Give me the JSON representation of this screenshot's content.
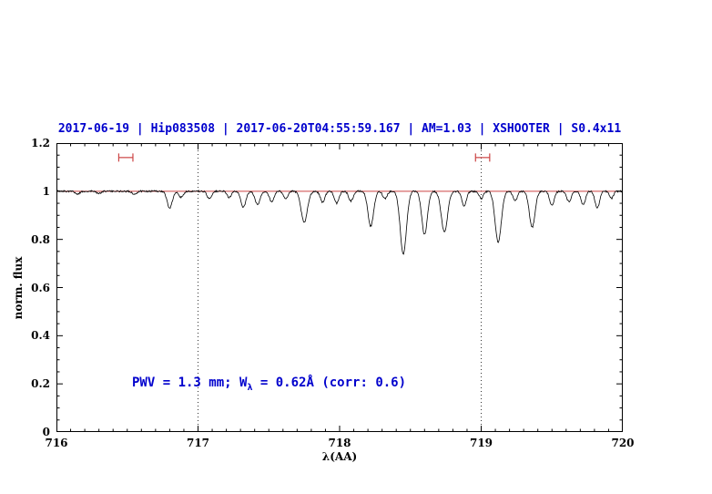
{
  "title": "2017-06-19 | Hip083508 | 2017-06-20T04:55:59.167 | AM=1.03 | XSHOOTER | S0.4x11",
  "annotation": {
    "part1": "PWV = 1.3 mm; W",
    "sub": "λ",
    "part2": " = 0.62Å (corr: 0.6)"
  },
  "colors": {
    "title_blue": "#0000cd",
    "annotation_blue": "#0000cd",
    "continuum_red": "#cc4444",
    "marker_red": "#cc4444",
    "spectrum_black": "#000000",
    "dotted_grid": "#333333",
    "frame": "#000000",
    "background": "#ffffff"
  },
  "chart_data": {
    "type": "line",
    "title": "2017-06-19 | Hip083508 | 2017-06-20T04:55:59.167 | AM=1.03 | XSHOOTER | S0.4x11",
    "xlabel": "λ(AA)",
    "ylabel": "norm. flux",
    "xlim": [
      716,
      720
    ],
    "ylim": [
      0,
      1.2
    ],
    "x_ticks": [
      716,
      717,
      718,
      719,
      720
    ],
    "x_tick_labels": [
      "716",
      "717",
      "718",
      "719",
      "720"
    ],
    "y_ticks": [
      0,
      0.2,
      0.4,
      0.6,
      0.8,
      1,
      1.2
    ],
    "y_tick_labels": [
      "0",
      "0.2",
      "0.4",
      "0.6",
      "0.8",
      "1",
      "1.2"
    ],
    "x_minor_step": 0.1,
    "y_minor_step": 0.05,
    "grid": "off",
    "legend": "none",
    "dotted_vlines_x": [
      717,
      719
    ],
    "continuum_y": 1.0,
    "range_markers": [
      {
        "x1": 716.44,
        "x2": 716.54,
        "y": 1.14
      },
      {
        "x1": 718.96,
        "x2": 719.06,
        "y": 1.14
      }
    ],
    "noise_amplitude": 0.0035,
    "sample_step": 0.004,
    "absorption_lines": [
      [
        716.15,
        0.012,
        0.015
      ],
      [
        716.3,
        0.01,
        0.015
      ],
      [
        716.55,
        0.012,
        0.015
      ],
      [
        716.8,
        0.07,
        0.018
      ],
      [
        716.88,
        0.025,
        0.015
      ],
      [
        717.08,
        0.03,
        0.016
      ],
      [
        717.22,
        0.025,
        0.015
      ],
      [
        717.32,
        0.065,
        0.018
      ],
      [
        717.42,
        0.055,
        0.018
      ],
      [
        717.52,
        0.045,
        0.016
      ],
      [
        717.62,
        0.03,
        0.015
      ],
      [
        717.75,
        0.13,
        0.022
      ],
      [
        717.88,
        0.045,
        0.016
      ],
      [
        717.98,
        0.05,
        0.016
      ],
      [
        718.08,
        0.04,
        0.016
      ],
      [
        718.22,
        0.145,
        0.02
      ],
      [
        718.32,
        0.03,
        0.015
      ],
      [
        718.45,
        0.26,
        0.022
      ],
      [
        718.6,
        0.18,
        0.02
      ],
      [
        718.74,
        0.17,
        0.022
      ],
      [
        718.88,
        0.06,
        0.016
      ],
      [
        719.0,
        0.03,
        0.015
      ],
      [
        719.12,
        0.21,
        0.022
      ],
      [
        719.24,
        0.04,
        0.015
      ],
      [
        719.36,
        0.15,
        0.02
      ],
      [
        719.5,
        0.06,
        0.016
      ],
      [
        719.62,
        0.045,
        0.015
      ],
      [
        719.72,
        0.055,
        0.016
      ],
      [
        719.82,
        0.07,
        0.016
      ],
      [
        719.92,
        0.03,
        0.014
      ]
    ]
  }
}
